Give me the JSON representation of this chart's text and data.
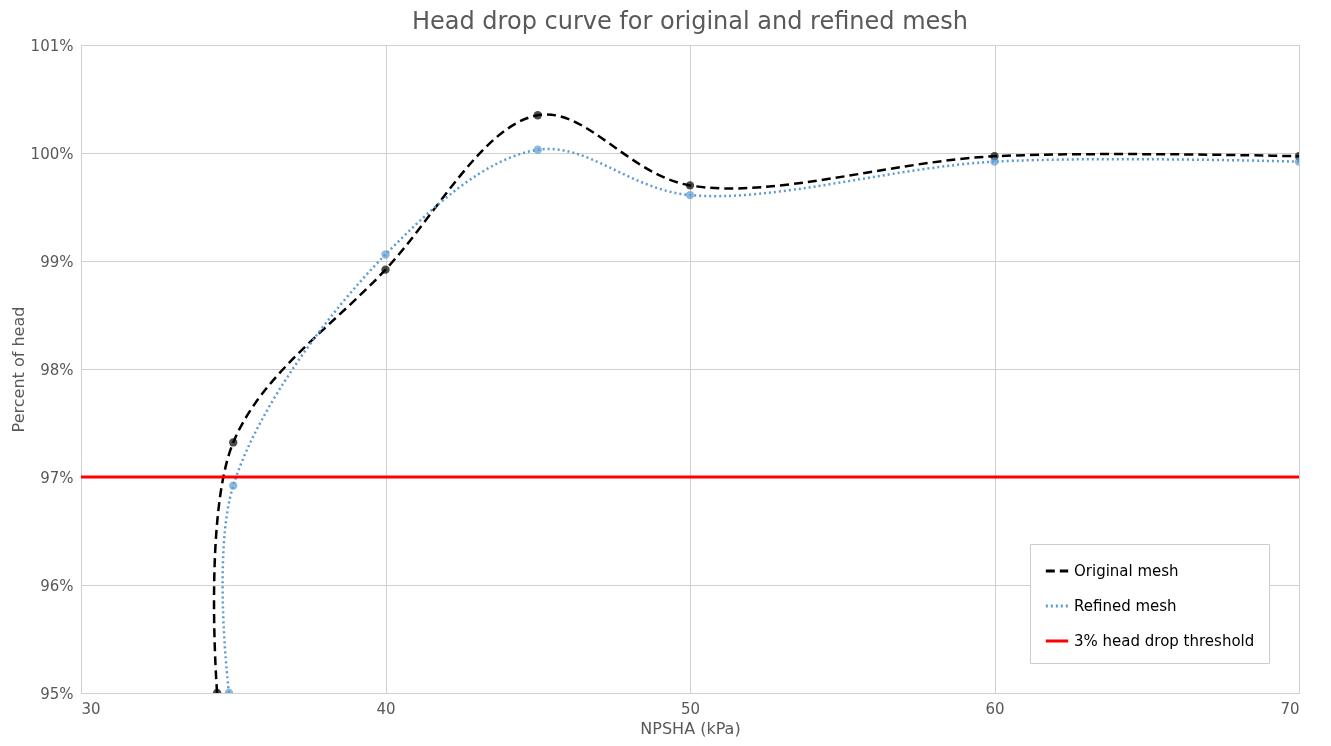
{
  "chart_data": {
    "type": "line",
    "title": "Head drop curve for original and refined mesh",
    "xlabel": "NPSHA (kPa)",
    "ylabel": "Percent of head",
    "xlim": [
      30,
      70
    ],
    "xticks": [
      30,
      40,
      50,
      60,
      70
    ],
    "ylim": [
      95,
      101
    ],
    "yticks": [
      {
        "value": 95,
        "label": "95%"
      },
      {
        "value": 96,
        "label": "96%"
      },
      {
        "value": 97,
        "label": "97%"
      },
      {
        "value": 98,
        "label": "98%"
      },
      {
        "value": 99,
        "label": "99%"
      },
      {
        "value": 100,
        "label": "100%"
      },
      {
        "value": 101,
        "label": "101%"
      }
    ],
    "grid": true,
    "legend": "bottom right",
    "marker": "circle",
    "series": [
      {
        "name": "Original mesh",
        "color": "#000000",
        "line_style": "dashed",
        "x": [
          34.47,
          35,
          40,
          45,
          50,
          60,
          70
        ],
        "values": [
          95,
          97.32,
          98.92,
          100.35,
          99.7,
          99.97,
          99.97
        ]
      },
      {
        "name": "Refined mesh",
        "color": "#5b9bd5",
        "line_style": "dotted",
        "x": [
          34.86,
          35,
          40,
          45,
          50,
          60,
          70
        ],
        "values": [
          95,
          96.92,
          99.06,
          100.03,
          99.61,
          99.92,
          99.92
        ]
      }
    ],
    "ref_lines": [
      {
        "axis": "y",
        "value": 97,
        "label": "3% head drop threshold",
        "color": "#ff0000",
        "line_style": "solid"
      }
    ]
  }
}
